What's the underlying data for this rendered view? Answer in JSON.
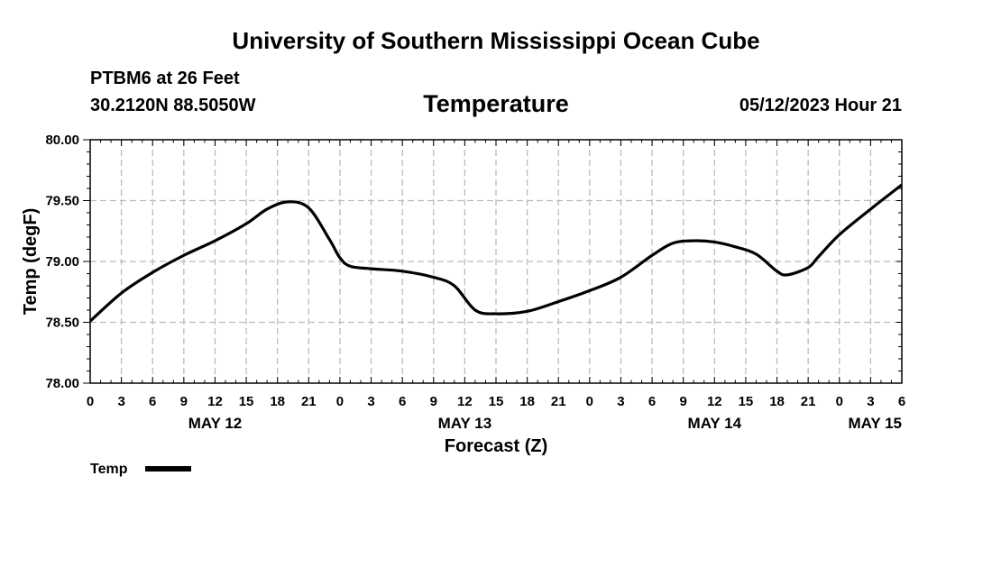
{
  "header": {
    "top_title": "University of Southern Mississippi Ocean Cube",
    "station": "PTBM6 at 26 Feet",
    "coords": "30.2120N  88.5050W",
    "datetime": "05/12/2023 Hour 21",
    "bottom_title": "University of Southern Mississippi Ocean Cube"
  },
  "chart_data": {
    "type": "line",
    "title": "Temperature",
    "xlabel": "Forecast (Z)",
    "ylabel": "Temp (degF)",
    "ylim": [
      78.0,
      80.0
    ],
    "yticks": [
      "80.00",
      "79.50",
      "79.00",
      "78.50",
      "78.00"
    ],
    "ytick_values": [
      80.0,
      79.5,
      79.0,
      78.5,
      78.0
    ],
    "xlim": [
      0,
      78
    ],
    "x_step_hours": 3,
    "x_tick_labels": [
      "0",
      "3",
      "6",
      "9",
      "12",
      "15",
      "18",
      "21",
      "0",
      "3",
      "6",
      "9",
      "12",
      "15",
      "18",
      "21",
      "0",
      "3",
      "6",
      "9",
      "12",
      "15",
      "18",
      "21",
      "0",
      "3",
      "6"
    ],
    "day_labels": [
      {
        "label": "MAY 12",
        "hour": 12
      },
      {
        "label": "MAY 13",
        "hour": 36
      },
      {
        "label": "MAY 14",
        "hour": 60
      },
      {
        "label": "MAY 15",
        "hour": 78
      }
    ],
    "grid": true,
    "legend": "bottom-left",
    "series": [
      {
        "name": "Temp",
        "color": "#000000",
        "x": [
          0,
          3,
          6,
          9,
          12,
          15,
          17,
          19,
          21,
          23,
          24,
          25,
          27,
          30,
          33,
          35,
          37,
          39,
          42,
          45,
          48,
          51,
          54,
          56,
          58,
          60,
          62,
          64,
          66,
          67,
          69,
          70,
          72,
          75,
          78
        ],
        "values": [
          78.51,
          78.74,
          78.91,
          79.05,
          79.17,
          79.31,
          79.43,
          79.49,
          79.44,
          79.18,
          79.03,
          78.96,
          78.94,
          78.92,
          78.87,
          78.8,
          78.6,
          78.57,
          78.59,
          78.67,
          78.76,
          78.87,
          79.05,
          79.15,
          79.17,
          79.16,
          79.12,
          79.06,
          78.92,
          78.89,
          78.95,
          79.04,
          79.22,
          79.43,
          79.63
        ]
      }
    ]
  }
}
